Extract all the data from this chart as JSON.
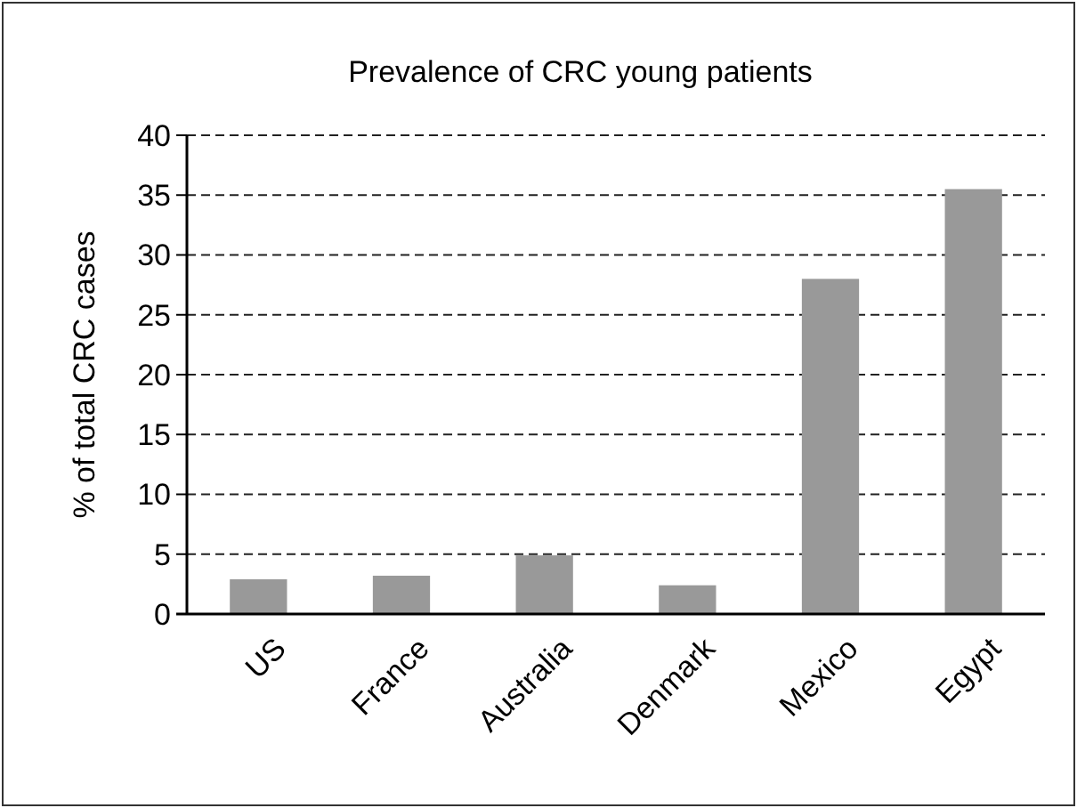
{
  "chart_data": {
    "type": "bar",
    "title": "Prevalence of CRC young patients",
    "ylabel": "% of total CRC cases",
    "categories": [
      "US",
      "France",
      "Australia",
      "Denmark",
      "Mexico",
      "Egypt"
    ],
    "values": [
      2.9,
      3.2,
      4.9,
      2.4,
      28,
      35.5
    ],
    "color": "#999999",
    "ylim": [
      0,
      40
    ],
    "yticks": [
      0,
      5,
      10,
      15,
      20,
      25,
      30,
      35,
      40
    ],
    "grid": "y"
  }
}
